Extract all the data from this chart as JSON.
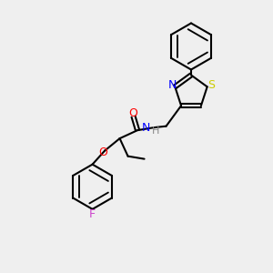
{
  "bg_color": "#efefef",
  "bond_color": "#000000",
  "bond_lw": 1.5,
  "atom_colors": {
    "N": "#0000ff",
    "O": "#ff0000",
    "S": "#cccc00",
    "F": "#cc44cc",
    "H": "#888888"
  },
  "font_size": 9,
  "font_size_small": 8
}
